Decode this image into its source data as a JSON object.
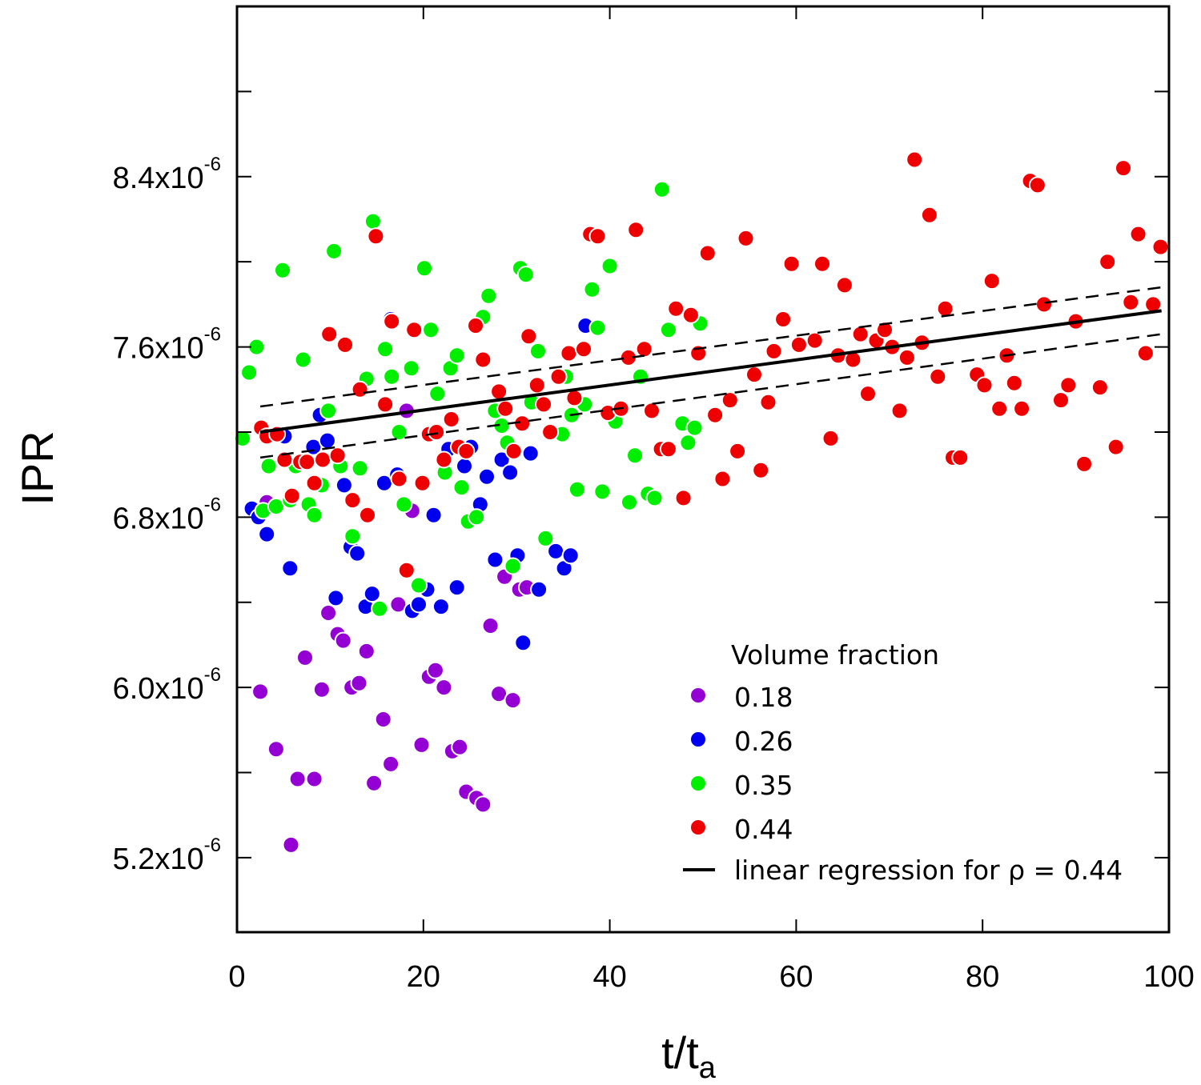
{
  "chart_data": {
    "type": "scatter",
    "xlabel": "t/t",
    "xlabel_sub": "a",
    "ylabel": "IPR",
    "xlim": [
      0,
      100
    ],
    "ylim": [
      4.85e-06,
      9.2e-06
    ],
    "x_ticks": [
      0,
      20,
      40,
      60,
      80,
      100
    ],
    "x_tick_labels": [
      "0",
      "20",
      "40",
      "60",
      "80",
      "100"
    ],
    "y_ticks": [
      5.2e-06,
      6e-06,
      6.8e-06,
      7.6e-06,
      8.4e-06
    ],
    "y_tick_labels": [
      {
        "base": "5.2x10",
        "exp": "-6"
      },
      {
        "base": "6.0x10",
        "exp": "-6"
      },
      {
        "base": "6.8x10",
        "exp": "-6"
      },
      {
        "base": "7.6x10",
        "exp": "-6"
      },
      {
        "base": "8.4x10",
        "exp": "-6"
      }
    ],
    "y_minor_ticks": [
      5.6e-06,
      6.4e-06,
      7.2e-06,
      8e-06,
      8.8e-06
    ],
    "grid": false,
    "legend_title": "Volume fraction",
    "legend_position": "bottom-right",
    "regression_label": "linear regression for ρ = 0.44",
    "series": [
      {
        "name": "0.18",
        "color": "#9400D3",
        "points": [
          [
            2.5,
            5.98
          ],
          [
            3.2,
            6.87
          ],
          [
            4.2,
            5.71
          ],
          [
            5.8,
            5.26
          ],
          [
            6.5,
            5.57
          ],
          [
            7.3,
            6.14
          ],
          [
            8.3,
            5.57
          ],
          [
            9.1,
            5.99
          ],
          [
            9.8,
            6.35
          ],
          [
            10.8,
            6.25
          ],
          [
            11.4,
            6.22
          ],
          [
            12.3,
            6.0
          ],
          [
            13.1,
            6.02
          ],
          [
            13.9,
            6.17
          ],
          [
            14.7,
            5.55
          ],
          [
            15.7,
            5.85
          ],
          [
            16.5,
            5.64
          ],
          [
            17.3,
            6.39
          ],
          [
            18.2,
            7.3
          ],
          [
            18.8,
            6.83
          ],
          [
            19.8,
            5.73
          ],
          [
            20.6,
            6.05
          ],
          [
            21.3,
            6.08
          ],
          [
            22.2,
            6.0
          ],
          [
            23.1,
            5.7
          ],
          [
            23.9,
            5.72
          ],
          [
            24.6,
            5.51
          ],
          [
            25.7,
            5.48
          ],
          [
            26.4,
            5.45
          ],
          [
            27.2,
            6.29
          ],
          [
            28.1,
            5.97
          ],
          [
            28.7,
            6.52
          ],
          [
            29.6,
            5.94
          ],
          [
            30.3,
            6.46
          ],
          [
            31.1,
            6.47
          ]
        ]
      },
      {
        "name": "0.26",
        "color": "#0000EE",
        "points": [
          [
            1.6,
            6.84
          ],
          [
            2.3,
            6.8
          ],
          [
            3.2,
            6.72
          ],
          [
            5.1,
            7.18
          ],
          [
            5.7,
            6.56
          ],
          [
            8.2,
            7.13
          ],
          [
            8.9,
            7.28
          ],
          [
            9.7,
            7.16
          ],
          [
            10.6,
            6.42
          ],
          [
            11.5,
            6.95
          ],
          [
            12.2,
            6.66
          ],
          [
            12.9,
            6.63
          ],
          [
            13.8,
            6.38
          ],
          [
            14.5,
            6.44
          ],
          [
            15.8,
            6.96
          ],
          [
            16.5,
            7.73
          ],
          [
            17.2,
            7.0
          ],
          [
            18.8,
            6.36
          ],
          [
            19.5,
            6.39
          ],
          [
            20.4,
            6.46
          ],
          [
            21.1,
            6.81
          ],
          [
            21.9,
            6.38
          ],
          [
            22.7,
            7.12
          ],
          [
            23.6,
            6.47
          ],
          [
            24.4,
            7.04
          ],
          [
            25.1,
            7.13
          ],
          [
            26.1,
            6.86
          ],
          [
            26.8,
            6.99
          ],
          [
            27.7,
            6.6
          ],
          [
            28.4,
            7.07
          ],
          [
            29.3,
            7.01
          ],
          [
            30.1,
            6.62
          ],
          [
            30.7,
            6.21
          ],
          [
            31.5,
            7.1
          ],
          [
            32.4,
            6.46
          ],
          [
            34.2,
            6.64
          ],
          [
            35.1,
            6.56
          ],
          [
            35.8,
            6.62
          ],
          [
            37.4,
            7.7
          ]
        ]
      },
      {
        "name": "0.35",
        "color": "#00EE00",
        "points": [
          [
            0.6,
            7.17
          ],
          [
            1.3,
            7.48
          ],
          [
            2.1,
            7.6
          ],
          [
            2.8,
            6.83
          ],
          [
            3.4,
            7.04
          ],
          [
            4.2,
            6.85
          ],
          [
            4.9,
            7.96
          ],
          [
            5.7,
            6.88
          ],
          [
            6.3,
            7.04
          ],
          [
            7.1,
            7.54
          ],
          [
            7.7,
            6.86
          ],
          [
            8.3,
            6.81
          ],
          [
            9.1,
            6.95
          ],
          [
            9.8,
            7.3
          ],
          [
            10.4,
            8.05
          ],
          [
            11.1,
            7.04
          ],
          [
            12.4,
            6.71
          ],
          [
            13.2,
            7.03
          ],
          [
            13.9,
            7.45
          ],
          [
            14.6,
            8.19
          ],
          [
            15.3,
            6.37
          ],
          [
            15.9,
            7.59
          ],
          [
            16.6,
            7.46
          ],
          [
            17.4,
            7.2
          ],
          [
            17.9,
            6.86
          ],
          [
            18.7,
            7.5
          ],
          [
            19.5,
            6.48
          ],
          [
            20.1,
            7.97
          ],
          [
            20.8,
            7.68
          ],
          [
            21.5,
            7.38
          ],
          [
            22.3,
            7.01
          ],
          [
            22.9,
            7.5
          ],
          [
            23.6,
            7.56
          ],
          [
            24.1,
            6.94
          ],
          [
            24.8,
            6.78
          ],
          [
            25.7,
            6.8
          ],
          [
            26.4,
            7.74
          ],
          [
            27.0,
            7.84
          ],
          [
            27.7,
            7.3
          ],
          [
            28.4,
            7.23
          ],
          [
            29.0,
            7.15
          ],
          [
            29.6,
            6.57
          ],
          [
            30.4,
            7.97
          ],
          [
            31.0,
            7.94
          ],
          [
            31.6,
            7.34
          ],
          [
            32.3,
            7.58
          ],
          [
            33.1,
            6.7
          ],
          [
            34.9,
            7.19
          ],
          [
            35.3,
            7.46
          ],
          [
            35.9,
            7.28
          ],
          [
            36.5,
            6.93
          ],
          [
            37.3,
            7.33
          ],
          [
            38.1,
            7.87
          ],
          [
            38.7,
            7.69
          ],
          [
            39.2,
            6.92
          ],
          [
            40.0,
            7.98
          ],
          [
            40.6,
            7.25
          ],
          [
            42.1,
            6.87
          ],
          [
            42.7,
            7.09
          ],
          [
            43.3,
            7.46
          ],
          [
            44.1,
            6.91
          ],
          [
            44.8,
            6.89
          ],
          [
            45.6,
            8.34
          ],
          [
            46.3,
            7.68
          ],
          [
            47.8,
            7.24
          ],
          [
            48.4,
            7.15
          ],
          [
            49.1,
            7.22
          ],
          [
            49.7,
            7.71
          ]
        ]
      },
      {
        "name": "0.44",
        "color": "#EE0000",
        "points": [
          [
            2.6,
            7.22
          ],
          [
            3.2,
            7.18
          ],
          [
            4.3,
            7.19
          ],
          [
            5.1,
            7.07
          ],
          [
            5.9,
            6.9
          ],
          [
            6.8,
            7.06
          ],
          [
            7.5,
            7.06
          ],
          [
            8.3,
            6.96
          ],
          [
            9.2,
            7.07
          ],
          [
            9.9,
            7.66
          ],
          [
            10.8,
            7.09
          ],
          [
            11.6,
            7.61
          ],
          [
            12.4,
            6.88
          ],
          [
            13.2,
            7.4
          ],
          [
            14.0,
            6.81
          ],
          [
            14.9,
            8.12
          ],
          [
            15.9,
            7.33
          ],
          [
            16.6,
            7.72
          ],
          [
            17.4,
            6.98
          ],
          [
            18.2,
            6.55
          ],
          [
            19.0,
            7.68
          ],
          [
            19.9,
            6.96
          ],
          [
            20.6,
            7.19
          ],
          [
            21.4,
            7.2
          ],
          [
            22.2,
            7.07
          ],
          [
            23.0,
            7.26
          ],
          [
            23.8,
            7.13
          ],
          [
            24.6,
            7.11
          ],
          [
            25.6,
            7.7
          ],
          [
            26.4,
            7.54
          ],
          [
            28.1,
            7.39
          ],
          [
            28.8,
            7.31
          ],
          [
            29.7,
            7.11
          ],
          [
            30.6,
            7.24
          ],
          [
            31.3,
            7.65
          ],
          [
            32.2,
            7.42
          ],
          [
            32.9,
            7.33
          ],
          [
            33.6,
            7.2
          ],
          [
            34.5,
            7.46
          ],
          [
            35.6,
            7.57
          ],
          [
            36.2,
            7.36
          ],
          [
            37.2,
            7.59
          ],
          [
            37.9,
            8.13
          ],
          [
            38.7,
            8.12
          ],
          [
            39.8,
            7.29
          ],
          [
            41.2,
            7.31
          ],
          [
            42.0,
            7.55
          ],
          [
            42.8,
            8.15
          ],
          [
            43.7,
            7.59
          ],
          [
            44.5,
            7.3
          ],
          [
            45.5,
            7.12
          ],
          [
            46.3,
            7.12
          ],
          [
            47.1,
            7.78
          ],
          [
            47.9,
            6.89
          ],
          [
            48.7,
            7.75
          ],
          [
            49.5,
            7.57
          ],
          [
            50.5,
            8.04
          ],
          [
            51.3,
            7.28
          ],
          [
            52.1,
            6.98
          ],
          [
            52.9,
            7.35
          ],
          [
            53.7,
            7.11
          ],
          [
            54.6,
            8.11
          ],
          [
            55.5,
            7.47
          ],
          [
            56.2,
            7.02
          ],
          [
            57.0,
            7.34
          ],
          [
            57.6,
            7.58
          ],
          [
            58.6,
            7.73
          ],
          [
            59.5,
            7.99
          ],
          [
            60.3,
            7.61
          ],
          [
            62.0,
            7.63
          ],
          [
            62.8,
            7.99
          ],
          [
            63.7,
            7.17
          ],
          [
            64.5,
            7.56
          ],
          [
            65.2,
            7.89
          ],
          [
            66.1,
            7.54
          ],
          [
            66.9,
            7.66
          ],
          [
            67.7,
            7.38
          ],
          [
            68.6,
            7.63
          ],
          [
            69.5,
            7.68
          ],
          [
            70.3,
            7.6
          ],
          [
            71.1,
            7.3
          ],
          [
            71.9,
            7.55
          ],
          [
            72.7,
            8.48
          ],
          [
            73.5,
            7.62
          ],
          [
            74.3,
            8.22
          ],
          [
            75.2,
            7.46
          ],
          [
            76.0,
            7.78
          ],
          [
            76.8,
            7.08
          ],
          [
            77.6,
            7.08
          ],
          [
            79.4,
            7.47
          ],
          [
            80.2,
            7.42
          ],
          [
            81.0,
            7.91
          ],
          [
            81.8,
            7.31
          ],
          [
            82.6,
            7.56
          ],
          [
            83.4,
            7.43
          ],
          [
            84.2,
            7.31
          ],
          [
            85.1,
            8.38
          ],
          [
            85.9,
            8.36
          ],
          [
            86.6,
            7.8
          ],
          [
            88.4,
            7.35
          ],
          [
            89.2,
            7.42
          ],
          [
            90.0,
            7.72
          ],
          [
            90.9,
            7.05
          ],
          [
            92.6,
            7.41
          ],
          [
            93.4,
            8.0
          ],
          [
            94.3,
            7.13
          ],
          [
            95.1,
            8.44
          ],
          [
            95.9,
            7.81
          ],
          [
            96.7,
            8.13
          ],
          [
            97.5,
            7.57
          ],
          [
            98.3,
            7.8
          ],
          [
            99.1,
            8.07
          ]
        ]
      }
    ],
    "regression": {
      "color": "#000000",
      "line": [
        [
          2.5,
          7.2
        ],
        [
          99.2,
          7.77
        ]
      ],
      "upper": [
        [
          2.5,
          7.32
        ],
        [
          99.2,
          7.88
        ]
      ],
      "lower": [
        [
          2.5,
          7.08
        ],
        [
          99.2,
          7.66
        ]
      ]
    }
  }
}
